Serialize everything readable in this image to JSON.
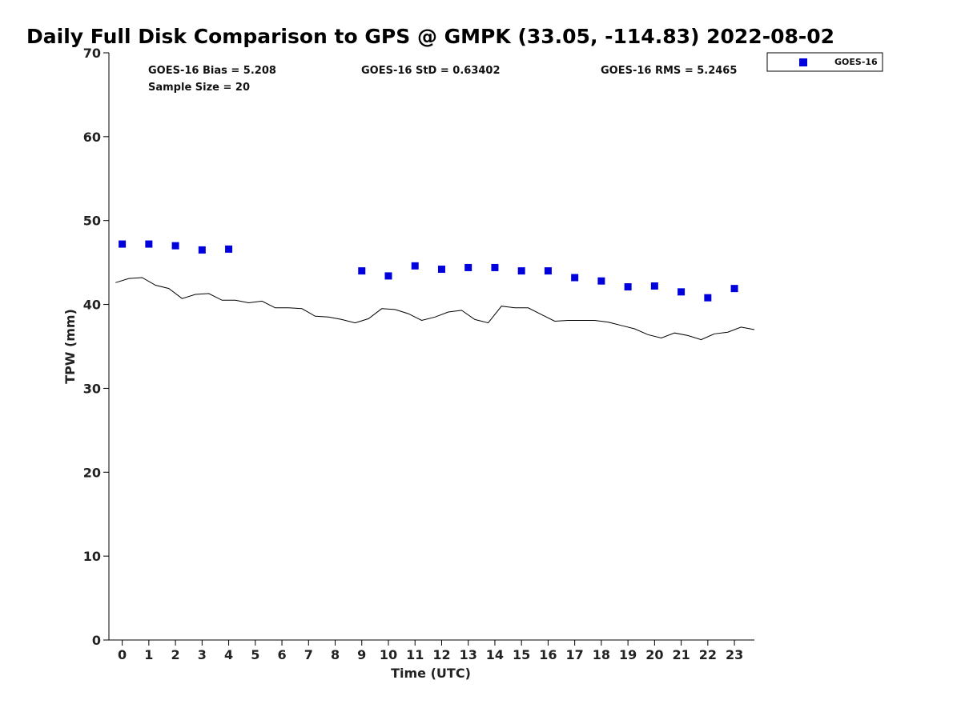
{
  "chart_data": {
    "type": "scatter",
    "title": "Daily Full Disk Comparison to GPS @ GMPK (33.05, -114.83) 2022-08-02",
    "xlabel": "Time (UTC)",
    "ylabel": "TPW (mm)",
    "xlim": [
      -0.5,
      23.75
    ],
    "ylim": [
      0,
      70
    ],
    "x_ticks": [
      "0",
      "1",
      "2",
      "3",
      "4",
      "5",
      "6",
      "7",
      "8",
      "9",
      "10",
      "11",
      "12",
      "13",
      "14",
      "15",
      "16",
      "17",
      "18",
      "19",
      "20",
      "21",
      "22",
      "23"
    ],
    "y_ticks": [
      "0",
      "10",
      "20",
      "30",
      "40",
      "50",
      "60",
      "70"
    ],
    "stats": {
      "bias": "GOES-16 Bias = 5.208",
      "std": "GOES-16 StD = 0.63402",
      "rms": "GOES-16 RMS = 5.2465",
      "sample": "Sample Size = 20"
    },
    "legend": {
      "entries": [
        "GOES-16"
      ],
      "placement": "top-right-outside"
    },
    "colors": {
      "goes": "#0000dd",
      "gps": "#000000"
    },
    "series": [
      {
        "name": "GOES-16",
        "style": "markers",
        "x": [
          0,
          1,
          2,
          3,
          4,
          9,
          10,
          11,
          12,
          13,
          14,
          15,
          16,
          17,
          18,
          19,
          20,
          21,
          22,
          23
        ],
        "y": [
          47.2,
          47.2,
          47.0,
          46.5,
          46.6,
          44.0,
          43.4,
          44.6,
          44.2,
          44.4,
          44.4,
          44.0,
          44.0,
          43.2,
          42.8,
          42.1,
          42.2,
          41.5,
          40.8,
          41.9
        ]
      },
      {
        "style": "line",
        "x": [
          -0.25,
          0.25,
          0.75,
          1.25,
          1.75,
          2.25,
          2.75,
          3.25,
          3.75,
          4.25,
          4.75,
          5.25,
          5.75,
          6.25,
          6.75,
          7.25,
          7.75,
          8.25,
          8.75,
          9.25,
          9.75,
          10.25,
          10.75,
          11.25,
          11.75,
          12.25,
          12.75,
          13.25,
          13.75,
          14.25,
          14.75,
          15.25,
          15.75,
          16.25,
          16.75,
          17.25,
          17.75,
          18.25,
          18.75,
          19.25,
          19.75,
          20.25,
          20.75,
          21.25,
          21.75,
          22.25,
          22.75,
          23.25,
          23.75
        ],
        "y": [
          42.6,
          43.1,
          43.2,
          42.3,
          41.9,
          40.7,
          41.2,
          41.3,
          40.5,
          40.5,
          40.2,
          40.4,
          39.6,
          39.6,
          39.5,
          38.6,
          38.5,
          38.2,
          37.8,
          38.3,
          39.5,
          39.4,
          38.9,
          38.1,
          38.5,
          39.1,
          39.3,
          38.2,
          37.8,
          39.8,
          39.6,
          39.6,
          38.8,
          38.0,
          38.1,
          38.1,
          38.1,
          37.9,
          37.5,
          37.1,
          36.4,
          36.0,
          36.6,
          36.3,
          35.8,
          36.5,
          36.7,
          37.3,
          37.0
        ]
      }
    ]
  }
}
